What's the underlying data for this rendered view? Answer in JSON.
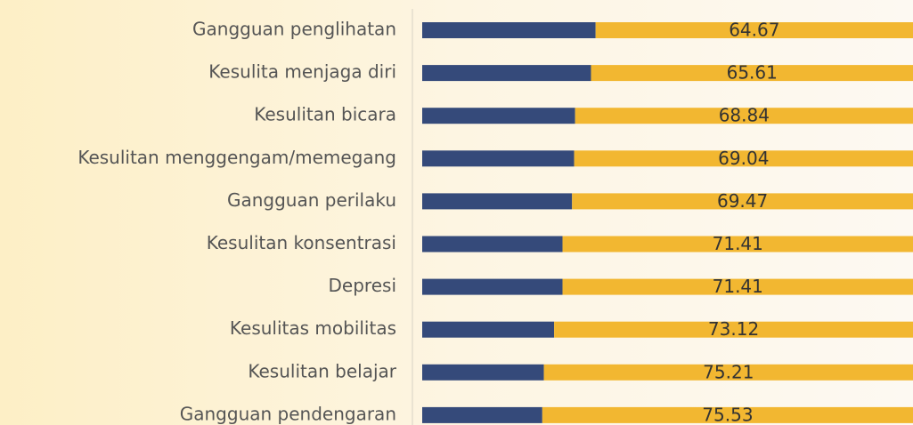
{
  "chart_data": {
    "type": "stacked_barh",
    "categories": [
      "Gangguan penglihatan",
      "Kesulita menjaga diri",
      "Kesulitan bicara",
      "Kesulitan menggengam/memegang",
      "Gangguan perilaku",
      "Kesulitan konsentrasi",
      "Depresi",
      "Kesulitas mobilitas",
      "Kesulitan belajar",
      "Gangguan pendengaran"
    ],
    "series": [
      {
        "color": "#354a7a",
        "values": [
          35.33,
          34.39,
          31.16,
          30.96,
          30.53,
          28.59,
          28.59,
          26.88,
          24.79,
          24.47
        ]
      },
      {
        "color": "#f2b731",
        "values": [
          64.67,
          65.61,
          68.84,
          69.04,
          69.47,
          71.41,
          71.41,
          73.12,
          75.21,
          75.53
        ],
        "data_labels": true
      }
    ],
    "xlim": [
      0,
      100
    ]
  }
}
